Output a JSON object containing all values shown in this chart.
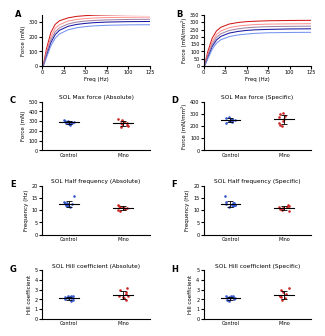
{
  "background": "#ffffff",
  "panel_titles": [
    "",
    "",
    "SOL Max force (Absolute)",
    "SOL Max force (Specific)",
    "SOL Half frequency (Absolute)",
    "SOL Half frequency (Specific)",
    "SOL Hill coefficient (Absolute)",
    "SOL Hill coefficient (Specific)"
  ],
  "freq_x": [
    1,
    2,
    5,
    10,
    15,
    20,
    30,
    40,
    50,
    60,
    75,
    100,
    125
  ],
  "freq_curves_A": {
    "ylabel": "Force (mN)",
    "ylim": [
      0,
      350
    ],
    "yticks": [
      0,
      100,
      200,
      300
    ],
    "curves": [
      {
        "color": "#CC0000",
        "vals": [
          5,
          30,
          120,
          230,
          285,
          310,
          330,
          340,
          345,
          348,
          350,
          352,
          353
        ]
      },
      {
        "color": "#FF8888",
        "vals": [
          4,
          22,
          100,
          200,
          258,
          283,
          308,
          319,
          325,
          329,
          332,
          334,
          335
        ]
      },
      {
        "color": "#000099",
        "vals": [
          3,
          15,
          75,
          160,
          215,
          245,
          272,
          285,
          292,
          297,
          301,
          304,
          305
        ]
      },
      {
        "color": "#6688EE",
        "vals": [
          2,
          12,
          60,
          138,
          190,
          220,
          248,
          262,
          270,
          275,
          279,
          282,
          283
        ]
      },
      {
        "color": "#997799",
        "vals": [
          3,
          18,
          88,
          178,
          234,
          262,
          288,
          301,
          308,
          312,
          316,
          319,
          320
        ]
      }
    ]
  },
  "freq_curves_B": {
    "ylabel": "Force (mN/mm²)",
    "ylim": [
      0,
      350
    ],
    "yticks": [
      0,
      50,
      100,
      150,
      200,
      250,
      300,
      350
    ],
    "curves": [
      {
        "color": "#CC0000",
        "vals": [
          4,
          25,
          100,
          190,
          240,
          265,
          288,
          298,
          304,
          307,
          310,
          312,
          313
        ]
      },
      {
        "color": "#FF8888",
        "vals": [
          3,
          18,
          82,
          165,
          215,
          240,
          263,
          274,
          280,
          284,
          287,
          289,
          290
        ]
      },
      {
        "color": "#000099",
        "vals": [
          2,
          13,
          62,
          133,
          178,
          203,
          226,
          237,
          244,
          248,
          251,
          254,
          255
        ]
      },
      {
        "color": "#6688EE",
        "vals": [
          2,
          10,
          50,
          114,
          156,
          180,
          202,
          213,
          219,
          224,
          228,
          230,
          231
        ]
      },
      {
        "color": "#997799",
        "vals": [
          3,
          15,
          72,
          148,
          196,
          221,
          244,
          255,
          262,
          266,
          270,
          272,
          273
        ]
      }
    ]
  },
  "xticks_freq": [
    0,
    25,
    50,
    75,
    100,
    125
  ],
  "xlabel_freq": "Freq (Hz)",
  "scatter_blue": "#3355CC",
  "scatter_red": "#CC2222",
  "groups": [
    "Control",
    "Mino"
  ],
  "panel_C": {
    "ylabel": "Force (mN)",
    "ylim": [
      0,
      500
    ],
    "yticks": [
      0,
      100,
      200,
      300,
      400,
      500
    ],
    "control_vals": [
      265,
      272,
      278,
      282,
      285,
      288,
      292,
      295,
      298,
      302,
      308
    ],
    "mino_vals": [
      235,
      248,
      258,
      268,
      278,
      285,
      295,
      308,
      318
    ]
  },
  "panel_D": {
    "ylabel": "Force (mN/mm²)",
    "ylim": [
      0,
      400
    ],
    "yticks": [
      0,
      100,
      200,
      300,
      400
    ],
    "control_vals": [
      225,
      232,
      238,
      242,
      246,
      249,
      252,
      256,
      260,
      264,
      270
    ],
    "mino_vals": [
      198,
      212,
      225,
      242,
      256,
      270,
      282,
      296,
      310
    ]
  },
  "panel_E": {
    "ylabel": "Frequency (Hz)",
    "ylim": [
      0,
      20
    ],
    "yticks": [
      0,
      5,
      10,
      15,
      20
    ],
    "control_vals": [
      11.5,
      12.0,
      12.2,
      12.5,
      12.8,
      13.0,
      13.2,
      12.5,
      12.0,
      11.8,
      16.0
    ],
    "mino_vals": [
      9.8,
      10.2,
      10.5,
      11.0,
      11.2,
      11.5,
      11.8,
      12.0,
      10.8
    ]
  },
  "panel_F": {
    "ylabel": "Frequency (Hz)",
    "ylim": [
      0,
      20
    ],
    "yticks": [
      0,
      5,
      10,
      15,
      20
    ],
    "control_vals": [
      11.5,
      12.0,
      12.2,
      12.5,
      12.8,
      13.0,
      13.2,
      12.5,
      12.0,
      11.8,
      16.0
    ],
    "mino_vals": [
      9.8,
      10.2,
      10.5,
      11.0,
      11.2,
      11.5,
      11.8,
      12.0,
      10.8
    ]
  },
  "panel_G": {
    "ylabel": "Hill coefficient",
    "ylim": [
      0,
      5
    ],
    "yticks": [
      0,
      1,
      2,
      3,
      4,
      5
    ],
    "control_vals": [
      1.9,
      2.0,
      2.1,
      2.1,
      2.2,
      2.2,
      2.3,
      2.3,
      2.4,
      2.1,
      1.8
    ],
    "mino_vals": [
      1.9,
      2.1,
      2.3,
      2.4,
      2.6,
      2.8,
      3.0,
      3.2,
      2.2
    ]
  },
  "panel_H": {
    "ylabel": "Hill coefficient",
    "ylim": [
      0,
      5
    ],
    "yticks": [
      0,
      1,
      2,
      3,
      4,
      5
    ],
    "control_vals": [
      1.9,
      2.0,
      2.1,
      2.1,
      2.2,
      2.2,
      2.3,
      2.3,
      2.4,
      2.1,
      1.8
    ],
    "mino_vals": [
      1.9,
      2.1,
      2.3,
      2.4,
      2.6,
      2.8,
      3.0,
      3.2,
      2.2
    ]
  },
  "jitter_seed": 42
}
